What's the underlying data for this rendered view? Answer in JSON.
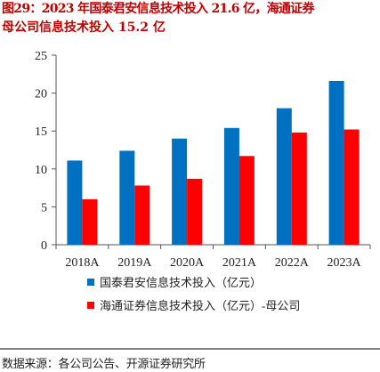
{
  "title": {
    "line1": "图29：2023 年国泰君安信息技术投入 21.6 亿，海通证券",
    "line2": "母公司信息技术投入 15.2 亿"
  },
  "source": "数据来源：各公司公告、开源证券研究所",
  "colors": {
    "title": "#c00000",
    "series1": "#0070c0",
    "series2": "#ff0000",
    "axis": "#555555"
  },
  "chart_data": {
    "type": "bar",
    "categories": [
      "2018A",
      "2019A",
      "2020A",
      "2021A",
      "2022A",
      "2023A"
    ],
    "series": [
      {
        "name": "国泰君安信息技术投入（亿元）",
        "color": "#0070c0",
        "values": [
          11.1,
          12.4,
          14.0,
          15.4,
          18.0,
          21.6
        ]
      },
      {
        "name": "海通证券信息技术投入（亿元）-母公司",
        "color": "#ff0000",
        "values": [
          6.0,
          7.8,
          8.7,
          11.7,
          14.8,
          15.2
        ]
      }
    ],
    "ylim": [
      0,
      25
    ],
    "yticks": [
      0,
      5,
      10,
      15,
      20,
      25
    ],
    "grid": false,
    "legend_position": "bottom",
    "xlabel": "",
    "ylabel": ""
  }
}
